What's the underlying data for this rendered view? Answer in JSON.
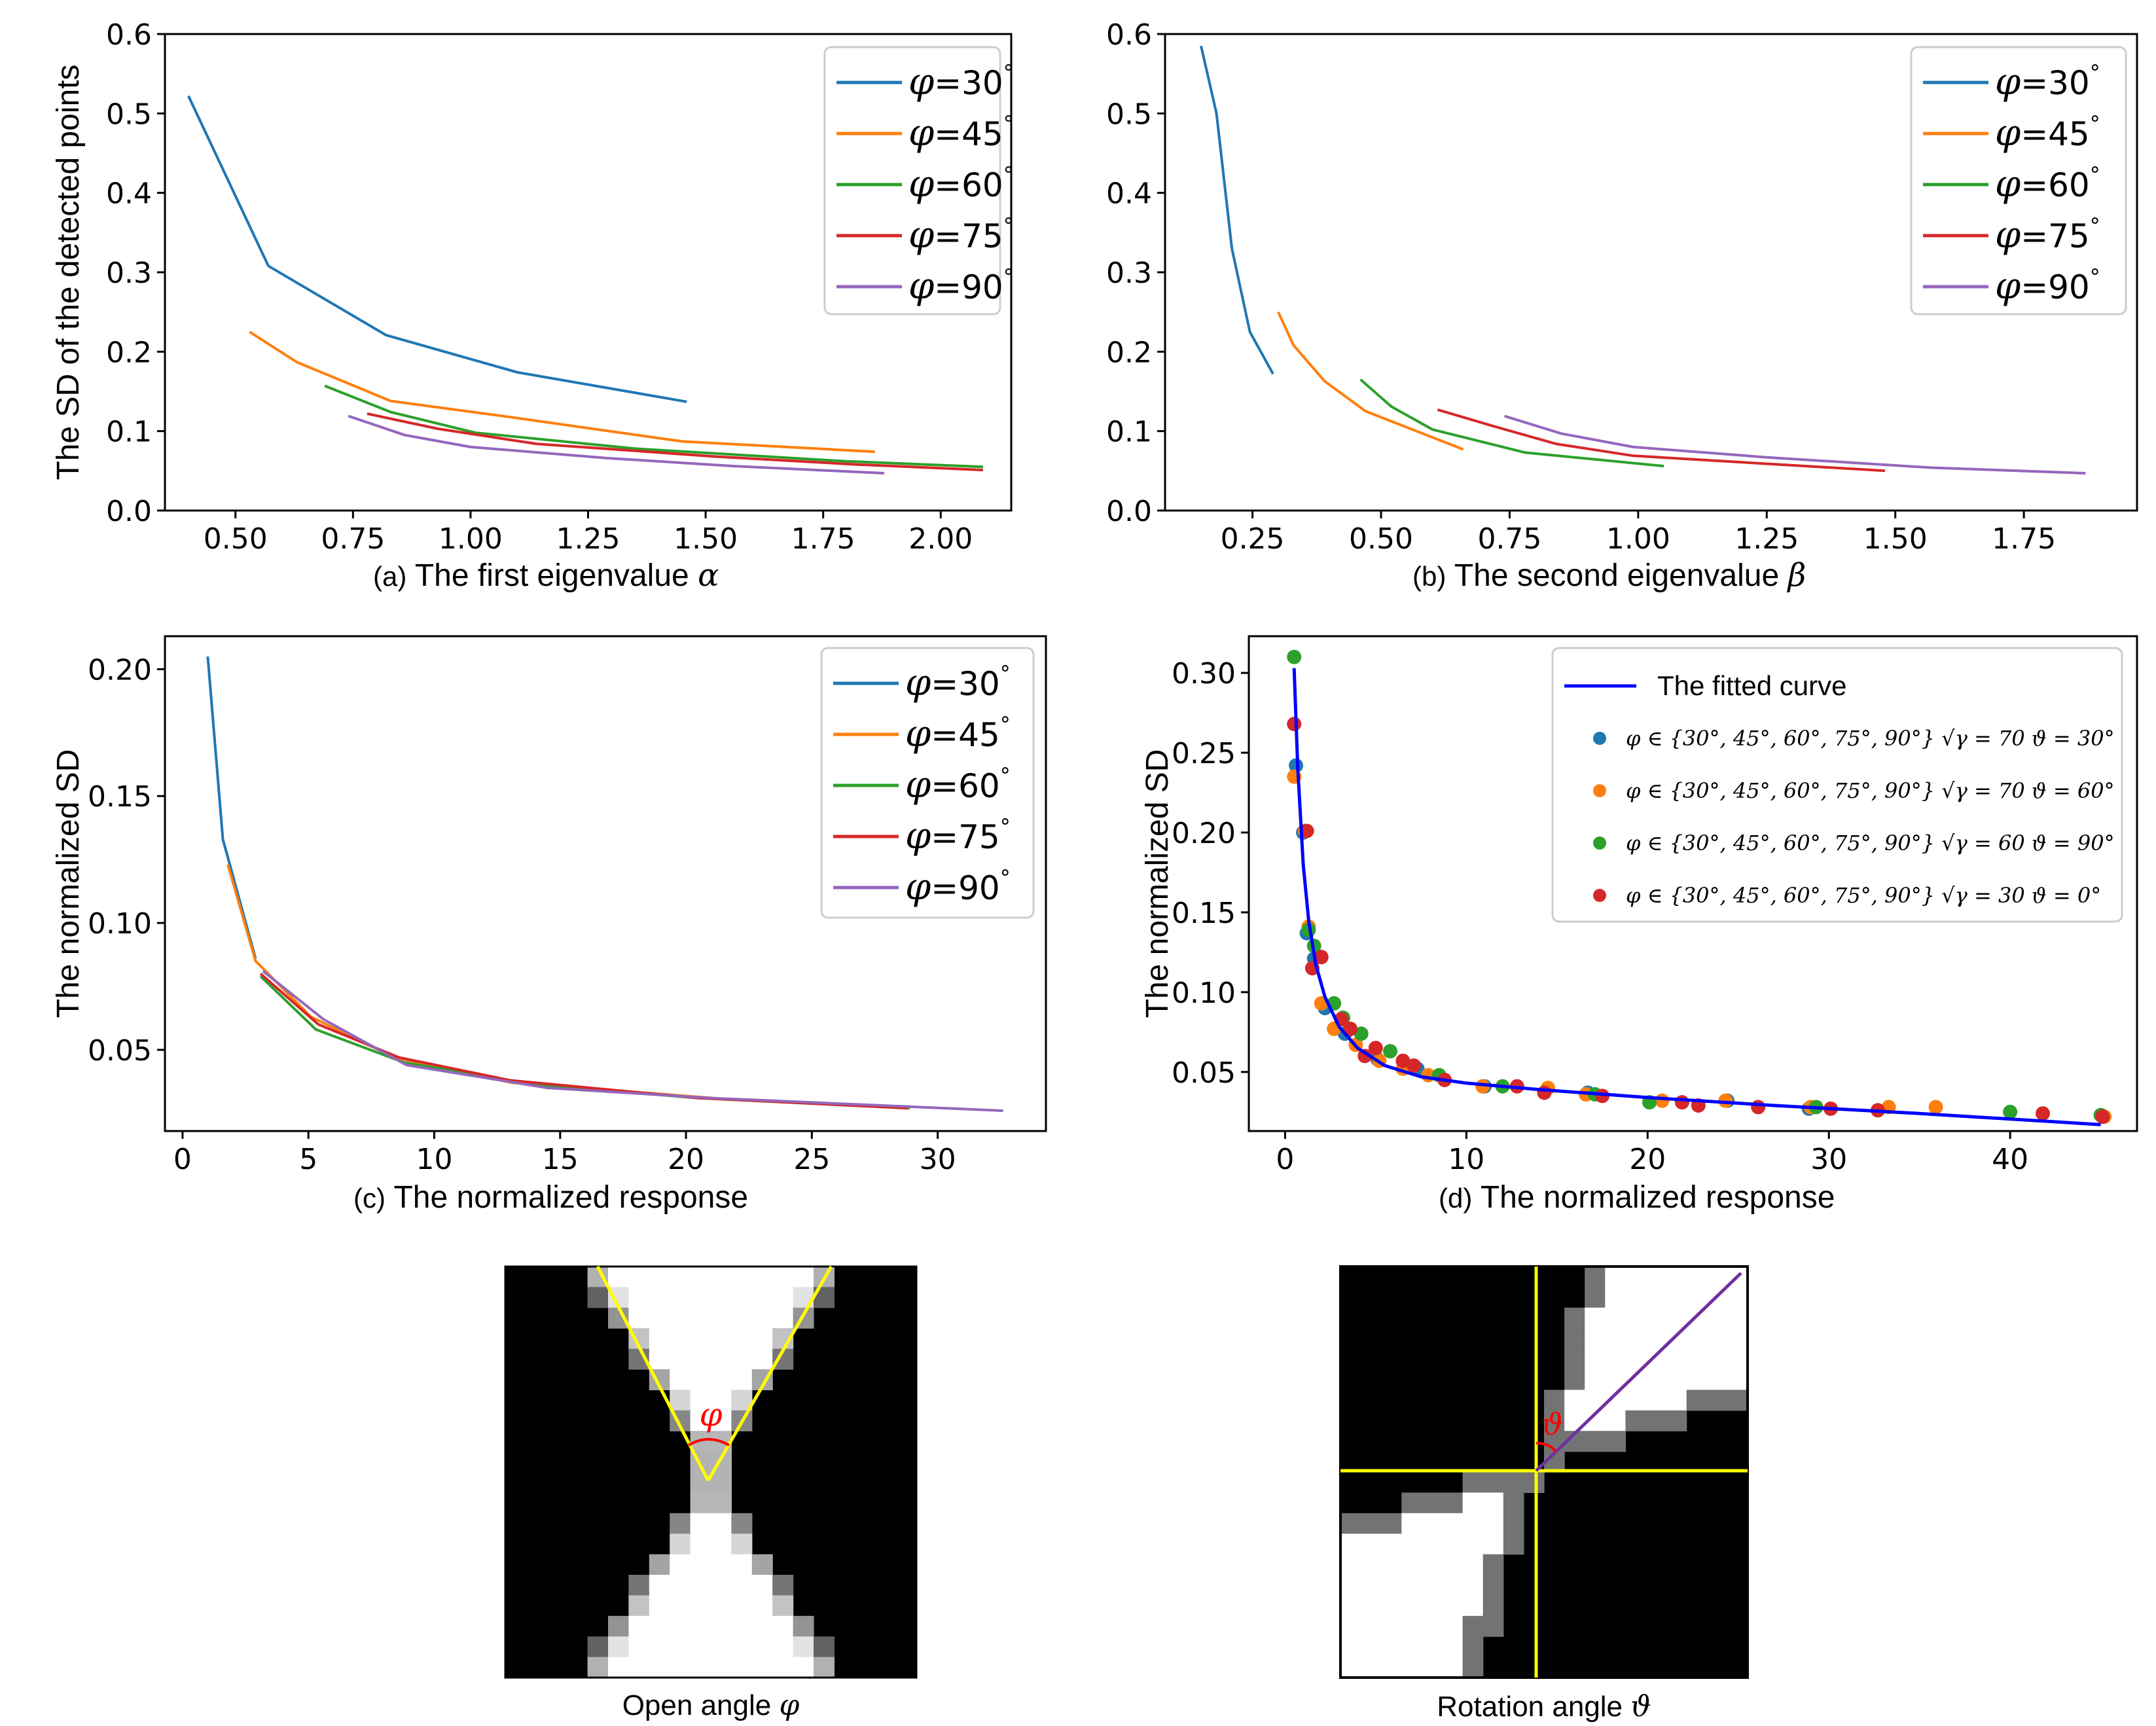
{
  "colors": {
    "blue": "#1f77b4",
    "orange": "#ff7f0e",
    "green": "#2ca02c",
    "red": "#d62728",
    "purple": "#9467bd",
    "fit": "#0000ff",
    "yellow": "#ffff00",
    "angle_red": "#ff0000",
    "diag": "#7030a0"
  },
  "chart_data": [
    {
      "id": "a",
      "type": "line",
      "caption_prefix": "(a)",
      "caption_text": "The first eigenvalue",
      "caption_symbol": "α",
      "ylabel": "The SD of the detected points",
      "xlim": [
        0.35,
        2.15
      ],
      "ylim": [
        0.0,
        0.6
      ],
      "xticks": [
        "0.50",
        "0.75",
        "1.00",
        "1.25",
        "1.50",
        "1.75",
        "2.00"
      ],
      "yticks": [
        "0.0",
        "0.1",
        "0.2",
        "0.3",
        "0.4",
        "0.5",
        "0.6"
      ],
      "series": [
        {
          "name": "φ=30°",
          "color": "blue",
          "x": [
            0.4,
            0.57,
            0.82,
            1.1,
            1.46
          ],
          "y": [
            0.522,
            0.308,
            0.221,
            0.174,
            0.137
          ]
        },
        {
          "name": "φ=45°",
          "color": "orange",
          "x": [
            0.53,
            0.63,
            0.83,
            1.08,
            1.45,
            1.86
          ],
          "y": [
            0.225,
            0.187,
            0.138,
            0.118,
            0.087,
            0.074
          ]
        },
        {
          "name": "φ=60°",
          "color": "green",
          "x": [
            0.69,
            0.83,
            1.01,
            1.35,
            1.8,
            2.09
          ],
          "y": [
            0.157,
            0.124,
            0.098,
            0.078,
            0.062,
            0.055
          ]
        },
        {
          "name": "φ=75°",
          "color": "red",
          "x": [
            0.78,
            0.93,
            1.14,
            1.52,
            1.82,
            2.09
          ],
          "y": [
            0.122,
            0.103,
            0.084,
            0.068,
            0.058,
            0.051
          ]
        },
        {
          "name": "φ=90°",
          "color": "purple",
          "x": [
            0.74,
            0.86,
            1.0,
            1.29,
            1.56,
            1.88
          ],
          "y": [
            0.119,
            0.095,
            0.08,
            0.066,
            0.056,
            0.047
          ]
        }
      ],
      "legend_items": [
        {
          "sym": "φ",
          "txt": "=30",
          "deg": "°",
          "color": "blue"
        },
        {
          "sym": "φ",
          "txt": "=45",
          "deg": "°",
          "color": "orange"
        },
        {
          "sym": "φ",
          "txt": "=60",
          "deg": "°",
          "color": "green"
        },
        {
          "sym": "φ",
          "txt": "=75",
          "deg": "°",
          "color": "red"
        },
        {
          "sym": "φ",
          "txt": "=90",
          "deg": "°",
          "color": "purple"
        }
      ]
    },
    {
      "id": "b",
      "type": "line",
      "caption_prefix": "(b)",
      "caption_text": "The second eigenvalue",
      "caption_symbol": "β",
      "ylabel": "",
      "xlim": [
        0.08,
        1.97
      ],
      "ylim": [
        0.0,
        0.6
      ],
      "xticks": [
        "0.25",
        "0.50",
        "0.75",
        "1.00",
        "1.25",
        "1.50",
        "1.75"
      ],
      "yticks": [
        "0.0",
        "0.1",
        "0.2",
        "0.3",
        "0.4",
        "0.5",
        "0.6"
      ],
      "series": [
        {
          "name": "φ=30°",
          "color": "blue",
          "x": [
            0.15,
            0.18,
            0.21,
            0.245,
            0.29
          ],
          "y": [
            0.585,
            0.5,
            0.33,
            0.225,
            0.172
          ]
        },
        {
          "name": "φ=45°",
          "color": "orange",
          "x": [
            0.3,
            0.33,
            0.39,
            0.47,
            0.66
          ],
          "y": [
            0.25,
            0.208,
            0.163,
            0.125,
            0.077
          ]
        },
        {
          "name": "φ=60°",
          "color": "green",
          "x": [
            0.46,
            0.52,
            0.6,
            0.78,
            1.05
          ],
          "y": [
            0.165,
            0.131,
            0.102,
            0.073,
            0.056
          ]
        },
        {
          "name": "φ=75°",
          "color": "red",
          "x": [
            0.61,
            0.72,
            0.84,
            0.99,
            1.48
          ],
          "y": [
            0.127,
            0.106,
            0.084,
            0.069,
            0.05
          ]
        },
        {
          "name": "φ=90°",
          "color": "purple",
          "x": [
            0.74,
            0.85,
            0.99,
            1.25,
            1.57,
            1.87
          ],
          "y": [
            0.119,
            0.097,
            0.08,
            0.067,
            0.054,
            0.047
          ]
        }
      ],
      "legend_items": [
        {
          "sym": "φ",
          "txt": "=30",
          "deg": "°",
          "color": "blue"
        },
        {
          "sym": "φ",
          "txt": "=45",
          "deg": "°",
          "color": "orange"
        },
        {
          "sym": "φ",
          "txt": "=60",
          "deg": "°",
          "color": "green"
        },
        {
          "sym": "φ",
          "txt": "=75",
          "deg": "°",
          "color": "red"
        },
        {
          "sym": "φ",
          "txt": "=90",
          "deg": "°",
          "color": "purple"
        }
      ]
    },
    {
      "id": "c",
      "type": "line",
      "caption_prefix": "(c)",
      "caption_text": "The normalized response",
      "caption_symbol": "",
      "ylabel": "The normalized SD",
      "xlim": [
        -0.7,
        34.3
      ],
      "ylim": [
        0.018,
        0.213
      ],
      "xticks": [
        "0",
        "5",
        "10",
        "15",
        "20",
        "25",
        "30"
      ],
      "yticks": [
        "0.05",
        "0.10",
        "0.15",
        "0.20"
      ],
      "xtickvals": [
        0,
        5,
        10,
        15,
        20,
        25,
        30
      ],
      "ytickvals": [
        0.05,
        0.1,
        0.15,
        0.2
      ],
      "series": [
        {
          "name": "φ=30°",
          "color": "blue",
          "x": [
            1.0,
            1.6,
            2.9
          ],
          "y": [
            0.205,
            0.133,
            0.086
          ]
        },
        {
          "name": "φ=45°",
          "color": "orange",
          "x": [
            1.8,
            2.9,
            5.1,
            8.4,
            13.1,
            21.1
          ],
          "y": [
            0.123,
            0.085,
            0.063,
            0.047,
            0.037,
            0.031
          ]
        },
        {
          "name": "φ=60°",
          "color": "green",
          "x": [
            3.1,
            5.3,
            8.8,
            14.2,
            20.5,
            28.9
          ],
          "y": [
            0.079,
            0.058,
            0.045,
            0.036,
            0.031,
            0.027
          ]
        },
        {
          "name": "φ=75°",
          "color": "red",
          "x": [
            3.1,
            5.4,
            8.6,
            13.0,
            20.5,
            28.8
          ],
          "y": [
            0.08,
            0.06,
            0.047,
            0.038,
            0.031,
            0.027
          ]
        },
        {
          "name": "φ=90°",
          "color": "purple",
          "x": [
            3.2,
            5.6,
            8.9,
            14.5,
            21.0,
            32.6
          ],
          "y": [
            0.081,
            0.062,
            0.044,
            0.035,
            0.031,
            0.026
          ]
        }
      ],
      "legend_items": [
        {
          "sym": "φ",
          "txt": "=30",
          "deg": "°",
          "color": "blue"
        },
        {
          "sym": "φ",
          "txt": "=45",
          "deg": "°",
          "color": "orange"
        },
        {
          "sym": "φ",
          "txt": "=60",
          "deg": "°",
          "color": "green"
        },
        {
          "sym": "φ",
          "txt": "=75",
          "deg": "°",
          "color": "red"
        },
        {
          "sym": "φ",
          "txt": "=90",
          "deg": "°",
          "color": "purple"
        }
      ]
    },
    {
      "id": "d",
      "type": "scatter",
      "caption_prefix": "(d)",
      "caption_text": "The normalized response",
      "caption_symbol": "",
      "ylabel": "The normalized SD",
      "xlim": [
        -2.0,
        47.0
      ],
      "ylim": [
        0.013,
        0.323
      ],
      "xticks": [
        "0",
        "10",
        "20",
        "30",
        "40"
      ],
      "yticks": [
        "0.05",
        "0.10",
        "0.15",
        "0.20",
        "0.25",
        "0.30"
      ],
      "xtickvals": [
        0,
        10,
        20,
        30,
        40
      ],
      "ytickvals": [
        0.05,
        0.1,
        0.15,
        0.2,
        0.25,
        0.3
      ],
      "fit": {
        "name": "The fitted curve",
        "color": "fit",
        "x": [
          0.5,
          0.7,
          1.0,
          1.3,
          1.7,
          2.2,
          3.0,
          4.0,
          5.5,
          7.5,
          10,
          14,
          20,
          27,
          35,
          45
        ],
        "y": [
          0.303,
          0.24,
          0.18,
          0.145,
          0.117,
          0.097,
          0.078,
          0.065,
          0.054,
          0.047,
          0.043,
          0.039,
          0.034,
          0.029,
          0.024,
          0.017
        ]
      },
      "series": [
        {
          "name": "φ ∈ {30°, 45°, 60°, 75°, 90°} √γ = 70  ϑ = 30°",
          "color": "blue",
          "x": [
            0.6,
            1.0,
            1.2,
            1.6,
            2.2,
            3.3,
            5.1,
            7.3,
            11.0,
            16.7,
            24.4,
            28.9
          ],
          "y": [
            0.242,
            0.2,
            0.137,
            0.121,
            0.09,
            0.074,
            0.058,
            0.052,
            0.041,
            0.037,
            0.032,
            0.027
          ]
        },
        {
          "name": "φ ∈ {30°, 45°, 60°, 75°, 90°} √γ = 70  ϑ = 60°",
          "color": "orange",
          "x": [
            0.5,
            1.1,
            1.3,
            2.0,
            2.7,
            3.9,
            5.2,
            6.5,
            7.9,
            10.9,
            14.5,
            16.6,
            20.8,
            24.3,
            29.0,
            33.3,
            35.9,
            45.2
          ],
          "y": [
            0.235,
            0.201,
            0.141,
            0.093,
            0.077,
            0.067,
            0.057,
            0.052,
            0.048,
            0.041,
            0.04,
            0.036,
            0.032,
            0.032,
            0.028,
            0.028,
            0.028,
            0.022
          ]
        },
        {
          "name": "φ ∈ {30°, 45°, 60°, 75°, 90°} √γ = 60  ϑ = 90°",
          "color": "green",
          "x": [
            0.5,
            1.3,
            1.6,
            2.7,
            3.2,
            4.2,
            5.8,
            8.5,
            12.0,
            17.1,
            20.1,
            29.3,
            40.0,
            45.0
          ],
          "y": [
            0.31,
            0.139,
            0.129,
            0.093,
            0.084,
            0.074,
            0.063,
            0.048,
            0.041,
            0.036,
            0.031,
            0.028,
            0.025,
            0.023
          ]
        },
        {
          "name": "φ ∈ {30°, 45°, 60°, 75°, 90°} √γ = 30  ϑ = 0°",
          "color": "red",
          "x": [
            0.5,
            1.2,
            1.5,
            2.0,
            3.1,
            3.6,
            4.4,
            5.0,
            6.5,
            7.1,
            8.8,
            12.8,
            14.3,
            17.5,
            21.9,
            22.8,
            26.1,
            30.1,
            32.7,
            41.8,
            45.1
          ],
          "y": [
            0.268,
            0.201,
            0.115,
            0.122,
            0.083,
            0.077,
            0.06,
            0.065,
            0.057,
            0.054,
            0.045,
            0.041,
            0.037,
            0.035,
            0.031,
            0.029,
            0.028,
            0.027,
            0.026,
            0.024,
            0.022
          ]
        }
      ],
      "legend_items": [
        {
          "sym": "φ",
          "txt": "∈ {30°, 45°, 60°, 75°, 90°} √γ = 70  ϑ = 30°",
          "color": "blue"
        },
        {
          "sym": "φ",
          "txt": "∈ {30°, 45°, 60°, 75°, 90°} √γ = 70  ϑ = 60°",
          "color": "orange"
        },
        {
          "sym": "φ",
          "txt": "∈ {30°, 45°, 60°, 75°, 90°} √γ = 60  ϑ = 90°",
          "color": "green"
        },
        {
          "sym": "φ",
          "txt": "∈ {30°, 45°, 60°, 75°, 90°} √γ = 30  ϑ = 0°",
          "color": "red"
        }
      ]
    }
  ],
  "images": {
    "left": {
      "caption_text": "Open angle",
      "caption_symbol": "φ",
      "angle_label": "φ"
    },
    "right": {
      "caption_text": "Rotation angle",
      "caption_symbol": "ϑ",
      "angle_label": "ϑ"
    }
  }
}
